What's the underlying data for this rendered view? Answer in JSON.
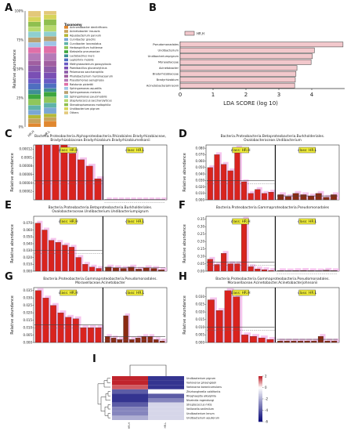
{
  "panel_labels": {
    "A": "A",
    "B": "B",
    "C": "C",
    "D": "D",
    "E": "E",
    "F": "F",
    "G": "G",
    "H": "H",
    "I": "I"
  },
  "colors": {
    "bar_red": "#d9231e",
    "bar_dark": "#8b2a12",
    "pink_shadow": "#f4b8ea",
    "lda_fill": "#f2c8cc",
    "class_box": "#f2ef3a",
    "heat_high": "#c0242c",
    "heat_mid": "#ffffff",
    "heat_low": "#0b0b7a"
  },
  "chart_data": [
    {
      "panel": "A",
      "type": "bar",
      "stacked": true,
      "categories": [
        "HR.H",
        "HR.L"
      ],
      "ylabel": "Relative abundance",
      "ylim": [
        0,
        100
      ],
      "yticks": [
        "0%",
        "25%",
        "50%",
        "75%",
        "100%"
      ],
      "legend_title": "Taxonomy",
      "legend_placement": "right",
      "series": [
        {
          "name": "Achromobacter denitrificans",
          "color": "#e0872f",
          "values": [
            3,
            5
          ]
        },
        {
          "name": "Acinetobacter insuavis",
          "color": "#c7a35a",
          "values": [
            4,
            3
          ]
        },
        {
          "name": "Aquabacterium parvum",
          "color": "#b4b838",
          "values": [
            3,
            3
          ]
        },
        {
          "name": "Curvibacter gracilis",
          "color": "#7aa7d4",
          "values": [
            4,
            5
          ]
        },
        {
          "name": "Curvibacter lanceolatus",
          "color": "#5fb3a8",
          "values": [
            4,
            4
          ]
        },
        {
          "name": "Herbaspirillum huttiense",
          "color": "#8fc65a",
          "values": [
            5,
            5
          ]
        },
        {
          "name": "Klebsiella pneumoniae",
          "color": "#3da63e",
          "values": [
            4,
            4
          ]
        },
        {
          "name": "Lactobacillus iners",
          "color": "#3f8f96",
          "values": [
            4,
            3
          ]
        },
        {
          "name": "Leptothrix mobilis",
          "color": "#4f6fc0",
          "values": [
            5,
            4
          ]
        },
        {
          "name": "Methylobacterium gossypiicola",
          "color": "#6a5bc4",
          "values": [
            4,
            4
          ]
        },
        {
          "name": "Paenibacillus glucanolyticus",
          "color": "#7a4fb4",
          "values": [
            6,
            5
          ]
        },
        {
          "name": "Pelomonas saccharophila",
          "color": "#8c5aa8",
          "values": [
            5,
            5
          ]
        },
        {
          "name": "Phyllobacterium myrsinacearum",
          "color": "#a05fa0",
          "values": [
            4,
            5
          ]
        },
        {
          "name": "Pseudomonas aeruginosa",
          "color": "#b57ab8",
          "values": [
            6,
            6
          ]
        },
        {
          "name": "Ralstonia pickettii",
          "color": "#e06fa8",
          "values": [
            5,
            6
          ]
        },
        {
          "name": "Sphingomonas aquatilis",
          "color": "#9fc4e6",
          "values": [
            4,
            4
          ]
        },
        {
          "name": "Sphingomonas melonis",
          "color": "#b8a06e",
          "values": [
            4,
            4
          ]
        },
        {
          "name": "Sphingomonas paucimobilis",
          "color": "#8fcfcf",
          "values": [
            5,
            4
          ]
        },
        {
          "name": "Staphylococcus saccharolyticus",
          "color": "#b8d96e",
          "values": [
            4,
            5
          ]
        },
        {
          "name": "Stenotrophomonas maltophilia",
          "color": "#8fbf4f",
          "values": [
            4,
            5
          ]
        },
        {
          "name": "Undibacterium pigrum",
          "color": "#d6d45a",
          "values": [
            4,
            4
          ]
        },
        {
          "name": "Others",
          "color": "#e3c87a",
          "values": [
            5,
            3
          ]
        }
      ]
    },
    {
      "panel": "B",
      "type": "bar",
      "orientation": "horizontal",
      "legend": [
        "HR.H"
      ],
      "xlabel": "LDA SCORE (log 10)",
      "xlim": [
        0,
        5
      ],
      "xticks": [
        0,
        1,
        2,
        3,
        4
      ],
      "categories": [
        "Pseudomonadales",
        "Undibacterium",
        "Undibacteriumpigrum",
        "Moraxellaceae",
        "Acinetobacter",
        "Bradyrhizobiaceae",
        "Bradyrhizobium",
        "Acinetobacterjohnsonii"
      ],
      "values": [
        4.95,
        4.08,
        4.02,
        3.98,
        3.55,
        3.52,
        3.5,
        3.48
      ]
    },
    {
      "panel": "C",
      "type": "bar",
      "title": "Bacteria.Proteobacteria.Alphaproteobacteria.Rhizobiales.Bradyrhizobiaceae,\nBradyrhizobiaceae.Bradyrhizobium.Bradyrhizobiumelkanii",
      "ylabel": "Relative abundance",
      "ylim": [
        0,
        0.00013
      ],
      "yticks": [
        "0.00002",
        "0.00004",
        "0.00006",
        "0.00008",
        "0.0001",
        "0.00012"
      ],
      "class_labels": [
        "class: HR.H",
        "class: HR.L"
      ],
      "mean_lines": [
        4.5e-05,
        5e-07
      ],
      "groups": [
        {
          "class": "HR.H",
          "color": "#d9231e",
          "values": [
            0.00013,
            0.00013,
            0.00013,
            0.00013,
            0.00011,
            9.5e-05,
            8e-05,
            5e-05
          ]
        },
        {
          "class": "HR.L",
          "color": "#8b2a12",
          "values": [
            0,
            0,
            0,
            0,
            0,
            0,
            0,
            0,
            0,
            0
          ]
        }
      ]
    },
    {
      "panel": "D",
      "type": "bar",
      "title": "Bacteria.Proteobacteria.Betaproteobacteria.Burkholderiales.\nOxalobacteraceae.Undibacterium",
      "ylabel": "Relative abundance",
      "ylim": [
        0,
        0.085
      ],
      "yticks": [
        "0.000",
        "0.010",
        "0.020",
        "0.030",
        "0.040",
        "0.050",
        "0.060",
        "0.070",
        "0.080"
      ],
      "class_labels": [
        "class: HR.H",
        "class: HR.L"
      ],
      "mean_lines": [
        0.03,
        0.006
      ],
      "groups": [
        {
          "class": "HR.H",
          "color": "#d9231e",
          "values": [
            0.05,
            0.07,
            0.055,
            0.045,
            0.08,
            0.028,
            0.01,
            0.016,
            0.01,
            0.012
          ]
        },
        {
          "class": "HR.L",
          "color": "#8b2a12",
          "values": [
            0.008,
            0.005,
            0.01,
            0.008,
            0.006,
            0.01,
            0.004,
            0.008
          ]
        }
      ]
    },
    {
      "panel": "E",
      "type": "bar",
      "title": "Bacteria.Proteobacteria.Betaproteobacteria.Burkholderiales.\nOxalobacteraceae.Undibacterium.Undibacteriumpigrum",
      "ylabel": "Relative abundance",
      "ylim": [
        0,
        0.08
      ],
      "yticks": [
        "0.000",
        "0.010",
        "0.020",
        "0.030",
        "0.040",
        "0.050",
        "0.060",
        "0.070"
      ],
      "class_labels": [
        "class: HR.H",
        "class: HR.L"
      ],
      "mean_lines": [
        0.03,
        0.005
      ],
      "groups": [
        {
          "class": "HR.H",
          "color": "#d9231e",
          "values": [
            0.07,
            0.06,
            0.045,
            0.042,
            0.038,
            0.035,
            0.02,
            0.01,
            0.006,
            0.004
          ]
        },
        {
          "class": "HR.L",
          "color": "#8b2a12",
          "values": [
            0.006,
            0.005,
            0.004,
            0.006,
            0.003,
            0.005,
            0.004,
            0.002
          ]
        }
      ]
    },
    {
      "panel": "F",
      "type": "bar",
      "title": "Bacteria.Proteobacteria.Gammaproteobacteria.Pseudomonadales",
      "ylabel": "Relative abundance",
      "ylim": [
        0,
        0.37
      ],
      "yticks": [
        "0.00",
        "0.05",
        "0.10",
        "0.15",
        "0.20",
        "0.25",
        "0.30",
        "0.35"
      ],
      "class_labels": [
        "class: HR.H",
        "class: HR.L"
      ],
      "mean_lines": [
        0.06,
        0.003
      ],
      "groups": [
        {
          "class": "HR.H",
          "color": "#d9231e",
          "values": [
            0.08,
            0.045,
            0.12,
            0.05,
            0.05,
            0.35,
            0.03,
            0.015,
            0.01,
            0.005
          ]
        },
        {
          "class": "HR.L",
          "color": "#8b2a12",
          "values": [
            0.003,
            0.002,
            0.004,
            0.005,
            0.003,
            0.002,
            0.006,
            0.003
          ]
        }
      ]
    },
    {
      "panel": "G",
      "type": "bar",
      "title": "Bacteria.Proteobacteria.Gammaproteobacteria.Pseudomonadales.\nMoraxellaceae.Acinetobacter",
      "ylabel": "Relative abundance",
      "ylim": [
        0,
        0.037
      ],
      "yticks": [
        "0.000",
        "0.005",
        "0.010",
        "0.015",
        "0.020",
        "0.025",
        "0.030",
        "0.035"
      ],
      "class_labels": [
        "class: HR.H",
        "class: HR.L"
      ],
      "mean_lines": [
        0.012,
        0.004
      ],
      "groups": [
        {
          "class": "HR.H",
          "color": "#d9231e",
          "values": [
            0.035,
            0.03,
            0.025,
            0.02,
            0.017,
            0.016,
            0.01,
            0.01,
            0.01
          ]
        },
        {
          "class": "HR.L",
          "color": "#8b2a12",
          "values": [
            0.004,
            0.003,
            0.002,
            0.018,
            0.002,
            0.003,
            0.004,
            0.004,
            0.002,
            0.001
          ]
        }
      ]
    },
    {
      "panel": "H",
      "type": "bar",
      "title": "Bacteria.Proteobacteria.Gammaproteobacteria.Pseudomonadales.\nMoraxellaceae.Acinetobacter.Acinetobacterjohnsonii",
      "ylabel": "Relative abundance",
      "ylim": [
        0,
        0.036
      ],
      "yticks": [
        "0.000",
        "0.005",
        "0.010",
        "0.015",
        "0.020",
        "0.025",
        "0.030"
      ],
      "class_labels": [
        "class: HR.H",
        "class: HR.L"
      ],
      "mean_lines": [
        0.01,
        0.002
      ],
      "groups": [
        {
          "class": "HR.H",
          "color": "#d9231e",
          "values": [
            0.028,
            0.021,
            0.034,
            0.03,
            0.005,
            0.004,
            0.003,
            0.002
          ]
        },
        {
          "class": "HR.L",
          "color": "#8b2a12",
          "values": [
            0.001,
            0.001,
            0.001,
            0.001,
            0.001,
            0.001,
            0.004,
            0.001,
            0.001
          ]
        }
      ]
    },
    {
      "panel": "I",
      "type": "heatmap",
      "columns": [
        "HR.H",
        "HR.L"
      ],
      "rows": [
        "Undibacterium pigrum",
        "Variovorax ginsengisoli",
        "Variovorax boronicumulans",
        "Zhizhongheella caldifontis",
        "Rhoghaeptia alkalphila",
        "Niveindia ragendungi",
        "Streptococcus mitis",
        "Veillonella sedimilum",
        "Undibacterium lenum",
        "Undibacterium aquilorum"
      ],
      "values": [
        [
          2,
          -5
        ],
        [
          2,
          -5
        ],
        [
          1.5,
          -5
        ],
        [
          -4,
          0
        ],
        [
          -5,
          -4
        ],
        [
          -5,
          -3
        ],
        [
          -4,
          -1
        ],
        [
          -3,
          -1
        ],
        [
          -3,
          -1
        ],
        [
          -2,
          -1
        ]
      ],
      "colorbar_ticks": [
        2,
        0,
        -2,
        -4,
        -6
      ],
      "vmin": -6,
      "vmax": 2
    }
  ]
}
